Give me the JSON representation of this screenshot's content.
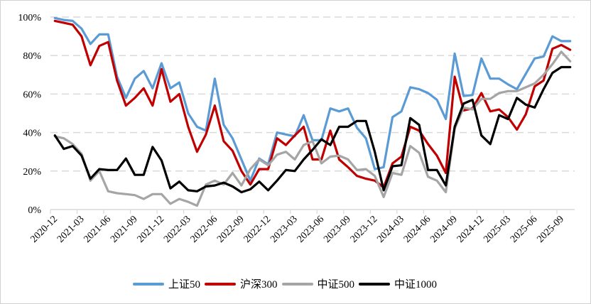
{
  "chart_data": {
    "type": "line",
    "title": "",
    "xlabel": "",
    "ylabel": "",
    "frequency": "monthly",
    "x_tick_labels": [
      "2020-12",
      "2021-03",
      "2021-06",
      "2021-09",
      "2021-12",
      "2022-03",
      "2022-06",
      "2022-09",
      "2022-12",
      "2023-03",
      "2023-06",
      "2023-09",
      "2023-12",
      "2024-03",
      "2024-06",
      "2024-09",
      "2024-12",
      "2025-03",
      "2025-06",
      "2025-09"
    ],
    "ylim": [
      0,
      100
    ],
    "y_ticks": [
      0,
      20,
      40,
      60,
      80,
      100
    ],
    "y_tick_labels": [
      "0%",
      "20%",
      "40%",
      "60%",
      "80%",
      "100%"
    ],
    "grid": "horizontal dashed",
    "legend_position": "bottom",
    "series": [
      {
        "name": "上证50",
        "color": "#5b9bd5",
        "values": [
          99.5,
          98.5,
          98,
          94,
          86,
          91,
          91,
          69,
          58,
          68,
          72,
          63,
          76,
          63,
          66,
          50,
          43,
          41,
          68,
          44,
          37,
          26,
          15,
          26.5,
          23.5,
          40,
          39,
          38,
          49,
          36,
          36,
          52.5,
          51,
          52.5,
          42.5,
          37,
          21,
          22,
          48,
          51,
          63.5,
          62.5,
          60.5,
          57,
          47,
          81,
          59,
          59.5,
          78.5,
          68,
          68,
          65,
          62.5,
          70.5,
          78.5,
          79.5,
          90,
          87.5,
          87.5
        ]
      },
      {
        "name": "沪深300",
        "color": "#c00000",
        "values": [
          98,
          97,
          96,
          90,
          75,
          85,
          87,
          67,
          54,
          58,
          63,
          54,
          73,
          56,
          60,
          43,
          30,
          39,
          54,
          35.5,
          30.5,
          20,
          13,
          21,
          21,
          37,
          33.5,
          38.5,
          43,
          26,
          26,
          41,
          26,
          22,
          17.5,
          16,
          15,
          11.5,
          24,
          27.5,
          43,
          41,
          34,
          28,
          19,
          69,
          51.5,
          52.5,
          60.5,
          51,
          52,
          48,
          41.5,
          49.5,
          64,
          67,
          83.5,
          85.5,
          83
        ]
      },
      {
        "name": "中证500",
        "color": "#a5a5a5",
        "values": [
          38,
          37,
          34,
          29,
          15,
          20,
          9.5,
          8.5,
          8,
          7.5,
          5.5,
          8,
          8,
          3,
          5.5,
          4,
          2,
          13,
          15,
          13,
          19,
          12.5,
          21,
          26,
          23,
          28.5,
          30,
          26,
          33.5,
          35.5,
          24,
          27.5,
          28,
          26,
          20.5,
          21,
          17.5,
          6.5,
          19,
          18,
          33,
          29.5,
          17,
          15,
          9,
          42,
          53,
          52,
          57.5,
          57.5,
          60.5,
          61.5,
          61.5,
          63.5,
          65.5,
          70,
          75.5,
          82,
          77
        ]
      },
      {
        "name": "中证1000",
        "color": "#000000",
        "values": [
          38.5,
          31.5,
          33,
          28,
          16,
          21,
          20.5,
          20.5,
          26.5,
          18,
          18,
          32.5,
          25.5,
          11,
          14.5,
          10,
          9.5,
          12,
          12.5,
          14,
          12,
          9,
          10.5,
          14.5,
          10,
          15,
          20.5,
          20,
          26,
          31,
          36.5,
          33.5,
          43,
          43,
          46,
          46,
          30,
          10,
          22.5,
          23,
          47.5,
          44,
          20.5,
          20.5,
          12.5,
          43,
          55,
          57,
          38.5,
          34,
          49,
          47,
          58,
          54.5,
          53,
          62.5,
          71,
          74,
          74
        ]
      }
    ]
  }
}
